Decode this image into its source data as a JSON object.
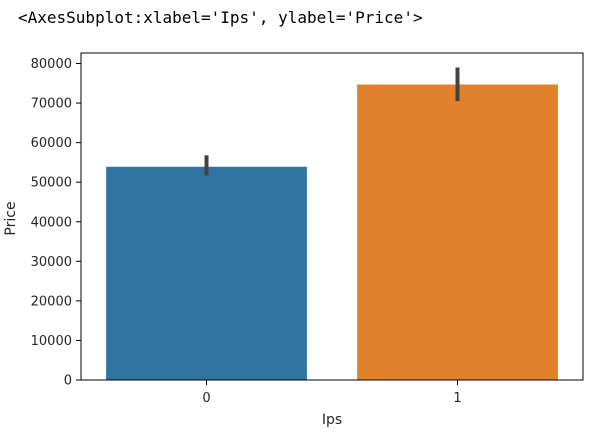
{
  "output": {
    "repr": "<AxesSubplot:xlabel='Ips', ylabel='Price'>"
  },
  "chart_data": {
    "type": "bar",
    "title": "",
    "xlabel": "Ips",
    "ylabel": "Price",
    "categories": [
      "0",
      "1"
    ],
    "values": [
      53900,
      74700
    ],
    "error_bars": [
      {
        "low": 51700,
        "high": 56800
      },
      {
        "low": 70500,
        "high": 79000
      }
    ],
    "colors": [
      "#3274a1",
      "#e1812c"
    ],
    "error_color": "#424242",
    "ylim": [
      0,
      80000
    ],
    "yticks": [
      0,
      10000,
      20000,
      30000,
      40000,
      50000,
      60000,
      70000,
      80000
    ],
    "ytick_labels": [
      "0",
      "10000",
      "20000",
      "30000",
      "40000",
      "50000",
      "60000",
      "70000",
      "80000"
    ],
    "grid": false,
    "legend": false
  }
}
